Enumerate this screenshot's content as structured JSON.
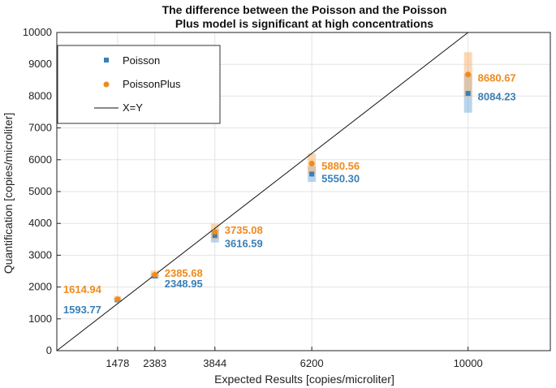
{
  "chart_data": {
    "type": "scatter",
    "title": "The difference between the Poisson and the Poisson Plus model is significant at high concentrations",
    "title_lines": [
      "The difference between the Poisson and the Poisson",
      "Plus model is significant at high concentrations"
    ],
    "xlabel": "Expected Results [copies/microliter]",
    "ylabel": "Quantification [copies/microliter]",
    "xlim": [
      0,
      12000
    ],
    "ylim": [
      0,
      10000
    ],
    "x_ticks": [
      1478,
      2383,
      3844,
      6200,
      10000
    ],
    "y_ticks": [
      0,
      1000,
      2000,
      3000,
      4000,
      5000,
      6000,
      7000,
      8000,
      9000,
      10000
    ],
    "grid": true,
    "legend_position": "top-left",
    "series": [
      {
        "name": "Poisson",
        "color": "#3a7fb5",
        "band_color": "#7fb3e0",
        "x": [
          1478,
          2383,
          3844,
          6200,
          10000
        ],
        "y": [
          1593.77,
          2348.95,
          3616.59,
          5550.3,
          8084.23
        ],
        "y_low": [
          1520,
          2260,
          3400,
          5300,
          7480
        ],
        "y_high": [
          1660,
          2440,
          3820,
          5800,
          8700
        ],
        "labels": [
          "1593.77",
          "2348.95",
          "3616.59",
          "5550.30",
          "8084.23"
        ]
      },
      {
        "name": "PoissonPlus",
        "color": "#f08a1c",
        "band_color": "#f7b879",
        "x": [
          1478,
          2383,
          3844,
          6200,
          10000
        ],
        "y": [
          1614.94,
          2385.68,
          3735.08,
          5880.56,
          8680.67
        ],
        "y_low": [
          1540,
          2280,
          3500,
          5550,
          7980
        ],
        "y_high": [
          1720,
          2520,
          3990,
          6200,
          9380
        ],
        "labels": [
          "1614.94",
          "2385.68",
          "3735.08",
          "5880.56",
          "8680.67"
        ]
      }
    ],
    "reference_line": {
      "name": "X=Y",
      "color": "#111111",
      "x": [
        0,
        10000
      ],
      "y": [
        0,
        10000
      ]
    }
  }
}
